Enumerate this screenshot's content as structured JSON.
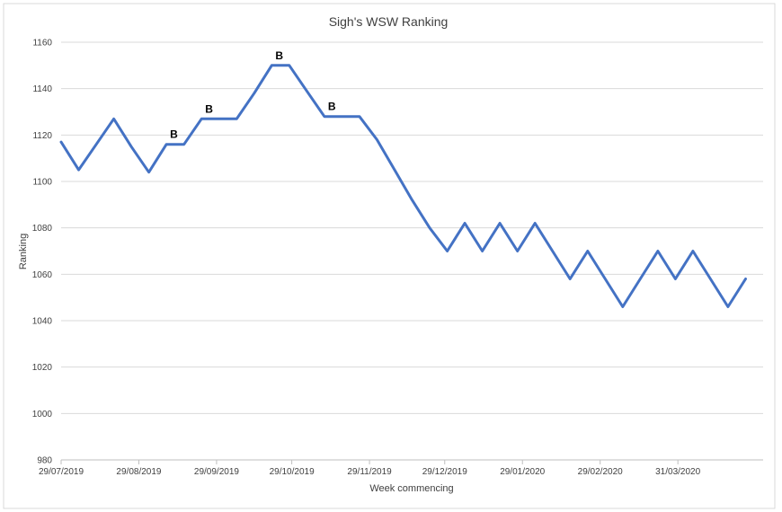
{
  "chart_data": {
    "type": "line",
    "title": "Sigh's WSW Ranking",
    "xlabel": "Week commencing",
    "ylabel": "Ranking",
    "ylim": [
      980,
      1160
    ],
    "yticks": [
      980,
      1000,
      1020,
      1040,
      1060,
      1080,
      1100,
      1120,
      1140,
      1160
    ],
    "xlim": [
      "2019-07-29",
      "2020-05-04"
    ],
    "xtick_labels": [
      {
        "date": "2019-07-29",
        "label": "29/07/2019"
      },
      {
        "date": "2019-08-29",
        "label": "29/08/2019"
      },
      {
        "date": "2019-09-29",
        "label": "29/09/2019"
      },
      {
        "date": "2019-10-29",
        "label": "29/10/2019"
      },
      {
        "date": "2019-11-29",
        "label": "29/11/2019"
      },
      {
        "date": "2019-12-29",
        "label": "29/12/2019"
      },
      {
        "date": "2020-01-29",
        "label": "29/01/2020"
      },
      {
        "date": "2020-02-29",
        "label": "29/02/2020"
      },
      {
        "date": "2020-03-31",
        "label": "31/03/2020"
      }
    ],
    "grid": "horizontal",
    "legend": "none",
    "series": [
      {
        "color": "#4472C4",
        "points": [
          {
            "x": "2019-07-29",
            "y": 1117
          },
          {
            "x": "2019-08-05",
            "y": 1105
          },
          {
            "x": "2019-08-12",
            "y": 1116
          },
          {
            "x": "2019-08-19",
            "y": 1127
          },
          {
            "x": "2019-08-26",
            "y": 1115
          },
          {
            "x": "2019-09-02",
            "y": 1104
          },
          {
            "x": "2019-09-09",
            "y": 1116
          },
          {
            "x": "2019-09-16",
            "y": 1116
          },
          {
            "x": "2019-09-23",
            "y": 1127
          },
          {
            "x": "2019-09-30",
            "y": 1127
          },
          {
            "x": "2019-10-07",
            "y": 1127
          },
          {
            "x": "2019-10-14",
            "y": 1138
          },
          {
            "x": "2019-10-21",
            "y": 1150
          },
          {
            "x": "2019-10-28",
            "y": 1150
          },
          {
            "x": "2019-11-04",
            "y": 1139
          },
          {
            "x": "2019-11-11",
            "y": 1128
          },
          {
            "x": "2019-11-18",
            "y": 1128
          },
          {
            "x": "2019-11-25",
            "y": 1128
          },
          {
            "x": "2019-12-02",
            "y": 1118
          },
          {
            "x": "2019-12-09",
            "y": 1105
          },
          {
            "x": "2019-12-16",
            "y": 1092
          },
          {
            "x": "2019-12-23",
            "y": 1080
          },
          {
            "x": "2019-12-30",
            "y": 1070
          },
          {
            "x": "2020-01-06",
            "y": 1082
          },
          {
            "x": "2020-01-13",
            "y": 1070
          },
          {
            "x": "2020-01-20",
            "y": 1082
          },
          {
            "x": "2020-01-27",
            "y": 1070
          },
          {
            "x": "2020-02-03",
            "y": 1082
          },
          {
            "x": "2020-02-10",
            "y": 1070
          },
          {
            "x": "2020-02-17",
            "y": 1058
          },
          {
            "x": "2020-02-24",
            "y": 1070
          },
          {
            "x": "2020-03-02",
            "y": 1058
          },
          {
            "x": "2020-03-09",
            "y": 1046
          },
          {
            "x": "2020-03-16",
            "y": 1058
          },
          {
            "x": "2020-03-23",
            "y": 1070
          },
          {
            "x": "2020-03-30",
            "y": 1058
          },
          {
            "x": "2020-04-06",
            "y": 1070
          },
          {
            "x": "2020-04-13",
            "y": 1058
          },
          {
            "x": "2020-04-20",
            "y": 1046
          },
          {
            "x": "2020-04-27",
            "y": 1058
          }
        ]
      }
    ],
    "annotations": [
      {
        "text": "B",
        "x": "2019-09-12",
        "y": 1116
      },
      {
        "text": "B",
        "x": "2019-09-26",
        "y": 1127
      },
      {
        "text": "B",
        "x": "2019-10-24",
        "y": 1150
      },
      {
        "text": "B",
        "x": "2019-11-14",
        "y": 1128
      }
    ]
  }
}
